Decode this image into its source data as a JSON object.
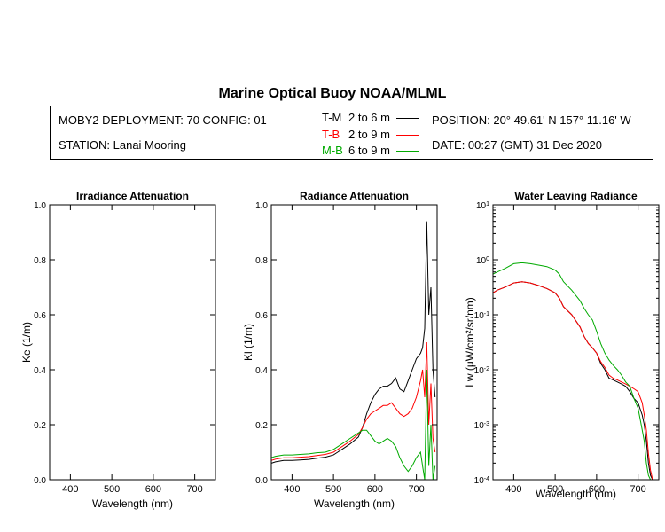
{
  "header": {
    "title": "Marine Optical Buoy NOAA/MLML",
    "deployment": "MOBY2 DEPLOYMENT: 70 CONFIG: 01",
    "station": "STATION: Lanai Mooring",
    "position": "POSITION: 20° 49.61' N   157° 11.16' W",
    "date": "DATE: 00:27 (GMT) 31 Dec 2020"
  },
  "legend": [
    {
      "name": "T-M",
      "range": "2 to 6  m",
      "color": "#000000"
    },
    {
      "name": "T-B",
      "range": "2 to 9  m",
      "color": "#ff0000"
    },
    {
      "name": "M-B",
      "range": "6 to 9  m",
      "color": "#00aa00"
    }
  ],
  "chart_data": [
    {
      "type": "line",
      "title": "Irradiance Attenuation",
      "xlabel": "Wavelength (nm)",
      "ylabel": "Ke  (1/m)",
      "xlim": [
        350,
        750
      ],
      "ylim": [
        0,
        1
      ],
      "xticks": [
        400,
        500,
        600,
        700
      ],
      "yticks": [
        "0.0",
        "0.2",
        "0.4",
        "0.6",
        "0.8",
        "1.0"
      ],
      "series": []
    },
    {
      "type": "line",
      "title": "Radiance Attenuation",
      "xlabel": "Wavelength (nm)",
      "ylabel": "Kl  (1/m)",
      "xlim": [
        350,
        750
      ],
      "ylim": [
        0,
        1
      ],
      "xticks": [
        400,
        500,
        600,
        700
      ],
      "yticks": [
        "0.0",
        "0.2",
        "0.4",
        "0.6",
        "0.8",
        "1.0"
      ],
      "series": [
        {
          "name": "T-M",
          "color": "#000000",
          "x": [
            350,
            360,
            380,
            400,
            420,
            440,
            460,
            480,
            500,
            510,
            520,
            540,
            560,
            570,
            580,
            590,
            600,
            610,
            620,
            630,
            640,
            650,
            660,
            670,
            680,
            690,
            700,
            710,
            715,
            720,
            725,
            730,
            735,
            740,
            745
          ],
          "y": [
            0.06,
            0.065,
            0.07,
            0.07,
            0.072,
            0.074,
            0.078,
            0.082,
            0.09,
            0.1,
            0.11,
            0.13,
            0.155,
            0.19,
            0.24,
            0.28,
            0.31,
            0.33,
            0.34,
            0.34,
            0.35,
            0.37,
            0.33,
            0.32,
            0.36,
            0.4,
            0.44,
            0.46,
            0.48,
            0.55,
            0.94,
            0.6,
            0.7,
            0.4,
            0.3
          ]
        },
        {
          "name": "T-B",
          "color": "#ff0000",
          "x": [
            350,
            360,
            380,
            400,
            420,
            440,
            460,
            480,
            500,
            510,
            520,
            540,
            560,
            570,
            580,
            590,
            600,
            610,
            620,
            630,
            640,
            650,
            660,
            670,
            680,
            690,
            700,
            710,
            715,
            720,
            725,
            730,
            735,
            740,
            745
          ],
          "y": [
            0.07,
            0.075,
            0.08,
            0.08,
            0.082,
            0.084,
            0.088,
            0.092,
            0.1,
            0.11,
            0.12,
            0.14,
            0.165,
            0.19,
            0.22,
            0.24,
            0.25,
            0.26,
            0.27,
            0.27,
            0.28,
            0.26,
            0.24,
            0.23,
            0.24,
            0.26,
            0.3,
            0.36,
            0.4,
            0.3,
            0.5,
            0.2,
            0.35,
            0.15,
            0.1
          ]
        },
        {
          "name": "M-B",
          "color": "#00aa00",
          "x": [
            350,
            360,
            380,
            400,
            420,
            440,
            460,
            480,
            500,
            510,
            520,
            540,
            560,
            570,
            580,
            590,
            600,
            610,
            620,
            630,
            640,
            650,
            660,
            670,
            680,
            690,
            700,
            710,
            715,
            720,
            725,
            730,
            735,
            740,
            745
          ],
          "y": [
            0.08,
            0.085,
            0.09,
            0.09,
            0.092,
            0.094,
            0.098,
            0.1,
            0.11,
            0.12,
            0.13,
            0.15,
            0.17,
            0.18,
            0.18,
            0.16,
            0.14,
            0.13,
            0.14,
            0.15,
            0.14,
            0.12,
            0.08,
            0.05,
            0.03,
            0.05,
            0.08,
            0.1,
            0.05,
            0.0,
            0.4,
            0.05,
            0.2,
            0.0,
            0.05
          ]
        }
      ]
    },
    {
      "type": "line",
      "title": "Water Leaving Radiance",
      "xlabel": "Wavelength (nm)",
      "ylabel": "Lw  (μW/cm²/sr/nm)",
      "xlim": [
        350,
        750
      ],
      "ylim": [
        0.0001,
        10
      ],
      "yscale": "log",
      "xticks": [
        400,
        500,
        600,
        700
      ],
      "yticks": [
        {
          "mantissa": "10",
          "exp": "1",
          "value": 10
        },
        {
          "mantissa": "10",
          "exp": "0",
          "value": 1
        },
        {
          "mantissa": "10",
          "exp": "-1",
          "value": 0.1
        },
        {
          "mantissa": "10",
          "exp": "-2",
          "value": 0.01
        },
        {
          "mantissa": "10",
          "exp": "-3",
          "value": 0.001
        },
        {
          "mantissa": "10",
          "exp": "-4",
          "value": 0.0001
        }
      ],
      "series": [
        {
          "name": "T-M",
          "color": "#000000",
          "x": [
            350,
            360,
            380,
            400,
            420,
            440,
            460,
            480,
            500,
            510,
            520,
            540,
            560,
            570,
            580,
            590,
            600,
            610,
            620,
            630,
            640,
            650,
            660,
            670,
            680,
            690,
            700,
            710,
            715,
            720,
            725,
            730,
            735
          ],
          "y": [
            0.25,
            0.28,
            0.32,
            0.38,
            0.4,
            0.38,
            0.34,
            0.3,
            0.25,
            0.2,
            0.14,
            0.1,
            0.06,
            0.04,
            0.03,
            0.025,
            0.02,
            0.013,
            0.01,
            0.007,
            0.0065,
            0.006,
            0.0055,
            0.005,
            0.004,
            0.003,
            0.0025,
            0.0015,
            0.001,
            0.0005,
            0.0002,
            0.00012,
            0.0001
          ]
        },
        {
          "name": "T-B",
          "color": "#ff0000",
          "x": [
            350,
            360,
            380,
            400,
            420,
            440,
            460,
            480,
            500,
            510,
            520,
            540,
            560,
            570,
            580,
            590,
            600,
            610,
            620,
            630,
            640,
            650,
            660,
            670,
            680,
            690,
            700,
            710,
            715,
            720,
            725,
            730,
            735
          ],
          "y": [
            0.25,
            0.28,
            0.32,
            0.38,
            0.4,
            0.38,
            0.34,
            0.3,
            0.25,
            0.2,
            0.14,
            0.1,
            0.06,
            0.04,
            0.03,
            0.025,
            0.02,
            0.014,
            0.011,
            0.008,
            0.007,
            0.0065,
            0.006,
            0.0055,
            0.005,
            0.0045,
            0.004,
            0.0025,
            0.0015,
            0.0008,
            0.0003,
            0.00015,
            0.0001
          ]
        },
        {
          "name": "M-B",
          "color": "#00aa00",
          "x": [
            350,
            360,
            380,
            400,
            420,
            440,
            460,
            480,
            500,
            510,
            520,
            540,
            560,
            570,
            580,
            590,
            600,
            610,
            620,
            630,
            640,
            650,
            660,
            670,
            680,
            690,
            700,
            710,
            715,
            720,
            725,
            730,
            735
          ],
          "y": [
            0.55,
            0.6,
            0.7,
            0.85,
            0.88,
            0.85,
            0.8,
            0.75,
            0.65,
            0.55,
            0.4,
            0.28,
            0.18,
            0.13,
            0.1,
            0.08,
            0.05,
            0.03,
            0.02,
            0.015,
            0.012,
            0.01,
            0.008,
            0.006,
            0.005,
            0.003,
            0.002,
            0.0008,
            0.0005,
            0.0002,
            0.00012,
            0.0001,
            0.0001
          ]
        }
      ]
    }
  ]
}
